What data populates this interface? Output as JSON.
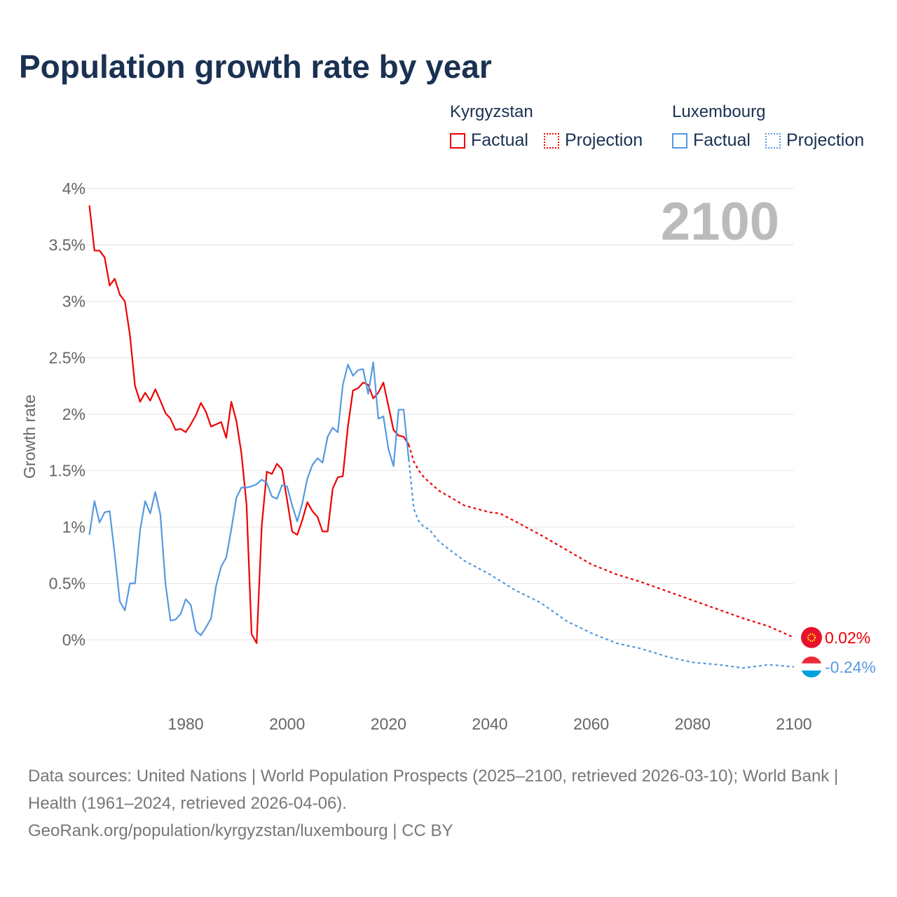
{
  "title": "Population growth rate by year",
  "legend": {
    "groups": [
      {
        "name": "Kyrgyzstan",
        "color": "#ee0000",
        "factual": "Factual",
        "projection": "Projection"
      },
      {
        "name": "Luxembourg",
        "color": "#5599e0",
        "factual": "Factual",
        "projection": "Projection"
      }
    ]
  },
  "footer": {
    "sources": "Data sources: United Nations | World Population Prospects (2025–2100, retrieved 2026-03-10); World Bank | Health (1961–2024, retrieved 2026-04-06).",
    "credit": "GeoRank.org/population/kyrgyzstan/luxembourg | CC BY"
  },
  "chart_data": {
    "type": "line",
    "title": "Population growth rate by year",
    "ylabel": "Growth rate",
    "xlabel": "",
    "year_watermark": "2100",
    "ylim": [
      0,
      4
    ],
    "xlim": [
      1961,
      2100
    ],
    "y_ticks": [
      "0%",
      "0.5%",
      "1%",
      "1.5%",
      "2%",
      "2.5%",
      "3%",
      "3.5%",
      "4%"
    ],
    "y_tick_values": [
      0,
      0.5,
      1,
      1.5,
      2,
      2.5,
      3,
      3.5,
      4
    ],
    "x_ticks": [
      "1980",
      "2000",
      "2020",
      "2040",
      "2060",
      "2080",
      "2100"
    ],
    "x_tick_values": [
      1980,
      2000,
      2020,
      2040,
      2060,
      2080,
      2100
    ],
    "grid": true,
    "series": [
      {
        "name": "Kyrgyzstan",
        "color": "#ee0000",
        "end_label": "0.02%",
        "factual_start": 1961,
        "factual": [
          3.85,
          3.45,
          3.45,
          3.39,
          3.14,
          3.2,
          3.06,
          3.0,
          2.7,
          2.25,
          2.11,
          2.19,
          2.12,
          2.22,
          2.12,
          2.01,
          1.96,
          1.86,
          1.87,
          1.84,
          1.91,
          1.99,
          2.1,
          2.02,
          1.89,
          1.91,
          1.93,
          1.79,
          2.11,
          1.94,
          1.65,
          1.2,
          0.05,
          -0.03,
          1.01,
          1.49,
          1.47,
          1.56,
          1.51,
          1.24,
          0.96,
          0.93,
          1.06,
          1.22,
          1.14,
          1.09,
          0.96,
          0.96,
          1.34,
          1.44,
          1.45,
          1.89,
          2.21,
          2.23,
          2.28,
          2.26,
          2.14,
          2.19,
          2.28,
          2.07,
          1.86,
          1.81,
          1.8,
          1.73
        ],
        "projection_years": [
          2025,
          2026,
          2027,
          2028,
          2030,
          2032,
          2035,
          2040,
          2042,
          2045,
          2050,
          2055,
          2060,
          2065,
          2070,
          2075,
          2080,
          2085,
          2090,
          2095,
          2100
        ],
        "projection": [
          1.58,
          1.5,
          1.44,
          1.4,
          1.32,
          1.27,
          1.19,
          1.13,
          1.12,
          1.05,
          0.93,
          0.8,
          0.67,
          0.58,
          0.51,
          0.43,
          0.35,
          0.27,
          0.19,
          0.12,
          0.02
        ]
      },
      {
        "name": "Luxembourg",
        "color": "#5599e0",
        "end_label": "-0.24%",
        "factual_start": 1961,
        "factual": [
          0.93,
          1.23,
          1.04,
          1.13,
          1.14,
          0.76,
          0.34,
          0.26,
          0.5,
          0.5,
          0.97,
          1.23,
          1.12,
          1.31,
          1.11,
          0.5,
          0.17,
          0.18,
          0.23,
          0.36,
          0.31,
          0.08,
          0.04,
          0.11,
          0.19,
          0.48,
          0.65,
          0.73,
          0.98,
          1.26,
          1.35,
          1.35,
          1.36,
          1.38,
          1.42,
          1.39,
          1.27,
          1.25,
          1.37,
          1.36,
          1.19,
          1.05,
          1.21,
          1.43,
          1.55,
          1.61,
          1.57,
          1.8,
          1.88,
          1.84,
          2.26,
          2.44,
          2.34,
          2.39,
          2.4,
          2.18,
          2.46,
          1.96,
          1.98,
          1.69,
          1.54,
          2.04,
          2.04,
          1.6
        ],
        "projection_years": [
          2025,
          2026,
          2027,
          2028,
          2030,
          2032,
          2035,
          2040,
          2045,
          2050,
          2055,
          2060,
          2065,
          2070,
          2075,
          2080,
          2085,
          2090,
          2095,
          2100
        ],
        "projection": [
          1.16,
          1.05,
          1.0,
          0.98,
          0.87,
          0.8,
          0.7,
          0.58,
          0.44,
          0.33,
          0.17,
          0.06,
          -0.03,
          -0.08,
          -0.15,
          -0.2,
          -0.22,
          -0.25,
          -0.22,
          -0.24
        ]
      }
    ]
  }
}
